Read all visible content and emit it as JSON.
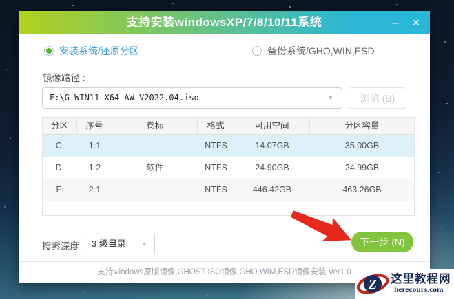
{
  "window": {
    "title": "支持安装windowsXP/7/8/10/11系统",
    "minimize_glyph": "─",
    "close_glyph": "✕"
  },
  "radios": [
    {
      "label": "安装系统/还原分区",
      "selected": true
    },
    {
      "label": "备份系统/GHO,WIN,ESD",
      "selected": false
    }
  ],
  "image_path": {
    "label": "镜像路径 :",
    "value": "F:\\G_WIN11_X64_AW_V2022.04.iso",
    "browse_label": "浏览 (B)"
  },
  "icons": {
    "dropdown_glyph": "▼"
  },
  "partition_table": {
    "headers": [
      "分区",
      "序号",
      "卷标",
      "格式",
      "可用空间",
      "分区容量"
    ],
    "rows": [
      {
        "cells": [
          "C:",
          "1:1",
          "",
          "NTFS",
          "14.07GB",
          "35.00GB"
        ],
        "selected": true
      },
      {
        "cells": [
          "D:",
          "1:2",
          "软件",
          "NTFS",
          "24.90GB",
          "24.99GB"
        ],
        "selected": false
      },
      {
        "cells": [
          "F:",
          "2:1",
          "",
          "NTFS",
          "446.42GB",
          "463.26GB"
        ],
        "selected": false
      }
    ]
  },
  "search_depth": {
    "label": "搜索深度",
    "value": "3 级目录"
  },
  "next_button": {
    "label": "下一步 (N)"
  },
  "footer": {
    "text": "支持windows原版镜像,GHOST ISO镜像,GHO,WIM,ESD镜像安装 Ver1.0"
  },
  "watermark": {
    "site_name": "这里教程网",
    "site_url": "herecours.com",
    "logo_letter": "Z"
  },
  "colors": {
    "titlebar_left": "#b2d01e",
    "titlebar_right": "#29b6d7",
    "button_green": "#82c43c",
    "radio_green": "#52b825",
    "link_blue": "#3aa0da",
    "arrow_red": "#e7281d",
    "row_selected": "#dff1f8",
    "logo_navy": "#1c2b57",
    "logo_red": "#c3251c"
  }
}
